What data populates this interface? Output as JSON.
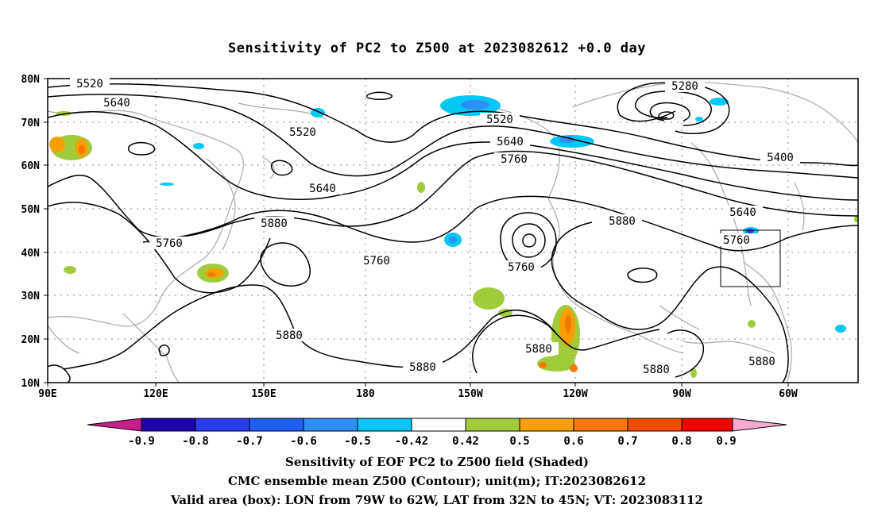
{
  "title": "Sensitivity of PC2 to Z500 at 2023082612 +0.0 day",
  "lat_labels": [
    "80N",
    "70N",
    "60N",
    "50N",
    "40N",
    "30N",
    "20N",
    "10N"
  ],
  "lon_labels": [
    "90E",
    "120E",
    "150E",
    "180",
    "150W",
    "120W",
    "90W",
    "60W"
  ],
  "contour_labels": [
    "5520",
    "5640",
    "5520",
    "5280",
    "5520",
    "5640",
    "5760",
    "5400",
    "5640",
    "5760",
    "5880",
    "5760",
    "5640",
    "5880",
    "5760",
    "5760",
    "5880",
    "5880",
    "5880",
    "5880",
    "5880"
  ],
  "colorbar": {
    "labels": [
      "-0.9",
      "-0.8",
      "-0.7",
      "-0.6",
      "-0.5",
      "-0.42",
      "0.42",
      "0.5",
      "0.6",
      "0.7",
      "0.8",
      "0.9"
    ],
    "colors": [
      "#1e00a8",
      "#2a3cf0",
      "#1e5ef5",
      "#2f8ef5",
      "#00c8f5",
      "#ffffff",
      "#a0cc3c",
      "#f5a000",
      "#f57800",
      "#f54b00",
      "#f50000"
    ],
    "low_arrow_color": "#c81e8c",
    "high_arrow_color": "#f5aad2"
  },
  "captions": [
    "Sensitivity of EOF PC2 to Z500 field (Shaded)",
    "CMC ensemble mean Z500 (Contour); unit(m); IT:2023082612",
    "Valid area (box): LON from 79W to 62W, LAT from 32N to 45N; VT: 2023083112"
  ]
}
